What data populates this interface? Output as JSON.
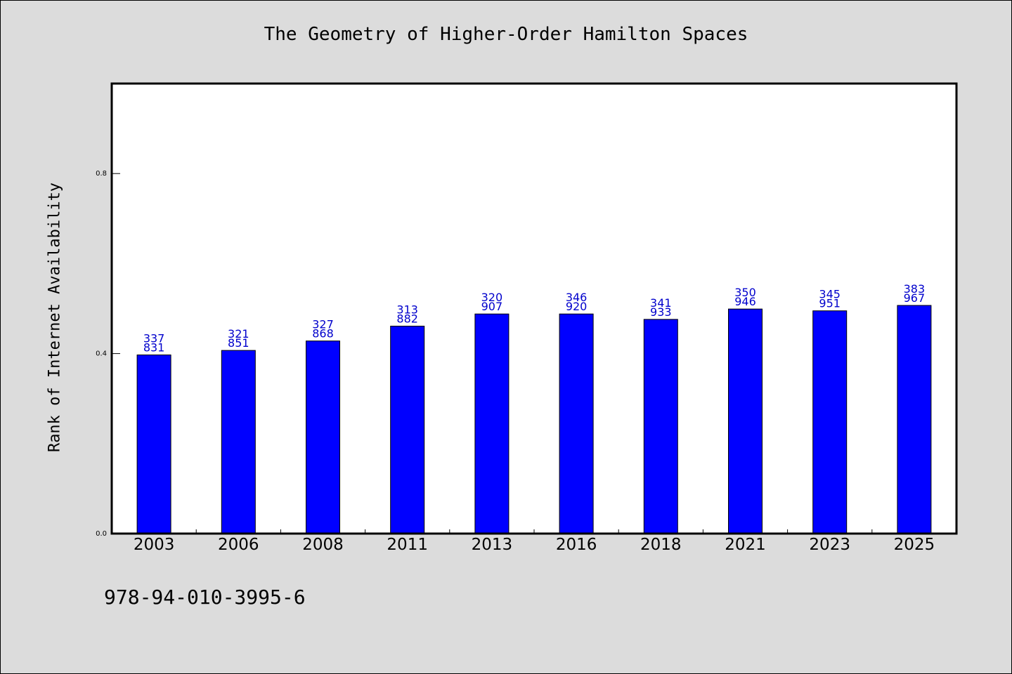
{
  "chart_data": {
    "type": "bar",
    "title": "The Geometry of Higher-Order Hamilton Spaces",
    "xlabel": "",
    "ylabel": "Rank of Internet Availability",
    "categories": [
      "2003",
      "2006",
      "2008",
      "2011",
      "2013",
      "2016",
      "2018",
      "2021",
      "2023",
      "2025"
    ],
    "values": [
      0.397,
      0.407,
      0.428,
      0.461,
      0.488,
      0.488,
      0.476,
      0.499,
      0.495,
      0.507
    ],
    "data_labels": [
      [
        "337",
        "831"
      ],
      [
        "321",
        "851"
      ],
      [
        "327",
        "868"
      ],
      [
        "313",
        "882"
      ],
      [
        "320",
        "907"
      ],
      [
        "346",
        "920"
      ],
      [
        "341",
        "933"
      ],
      [
        "350",
        "946"
      ],
      [
        "345",
        "951"
      ],
      [
        "383",
        "967"
      ]
    ],
    "ylim": [
      0,
      1.0
    ],
    "yticks": [
      0.0,
      0.4,
      0.8
    ],
    "ytick_labels": [
      "0.0",
      "0.4",
      "0.8"
    ],
    "bar_color": "#0000ff",
    "label_color": "#0000cc",
    "grid": false,
    "legend": "none"
  },
  "footer": {
    "identifier": "978-94-010-3995-6"
  }
}
